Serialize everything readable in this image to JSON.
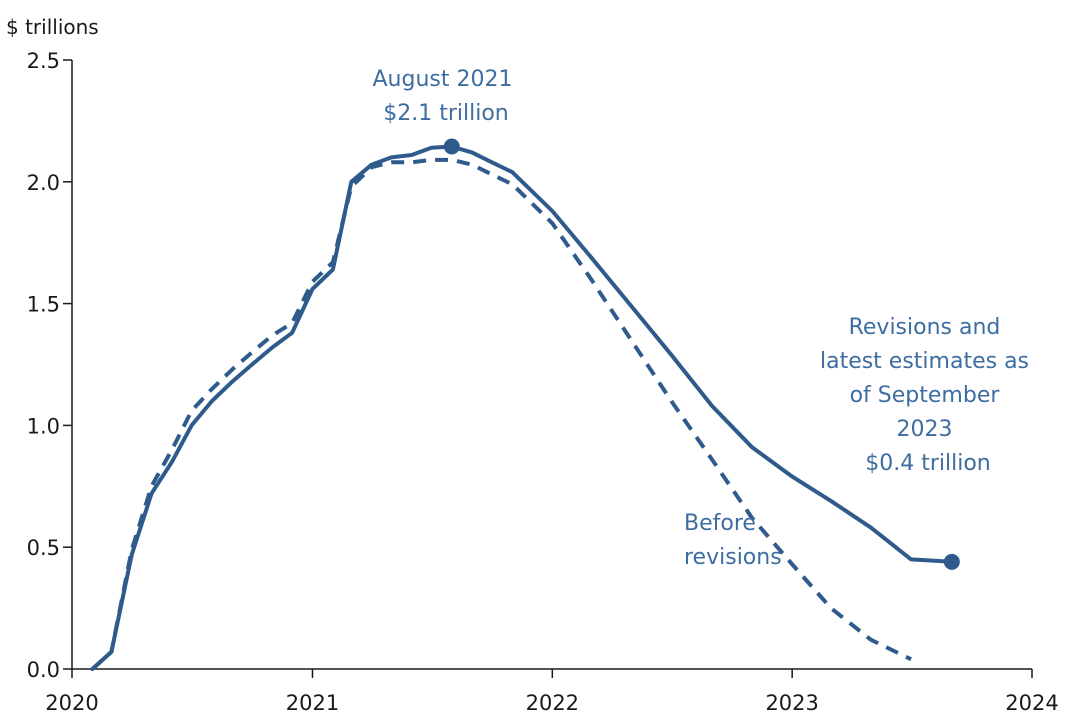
{
  "chart_data": {
    "type": "line",
    "title": "",
    "ylabel": "$ trillions",
    "xlabel": "",
    "xlim": [
      "2020-01-01",
      "2024-01-01"
    ],
    "ylim": [
      0,
      2.5
    ],
    "x_ticks": [
      "2020",
      "2021",
      "2022",
      "2023",
      "2024"
    ],
    "y_ticks": [
      "0.0",
      "0.5",
      "1.0",
      "1.5",
      "2.0",
      "2.5"
    ],
    "grid": false,
    "colors": {
      "line": "#2f5a8c",
      "axis": "#1a1a1a",
      "text": "#1a1a1a",
      "annotation": "#3d6da1"
    },
    "series": [
      {
        "style": "solid",
        "points": [
          [
            "2020-02-01",
            0.0
          ],
          [
            "2020-03-01",
            0.07
          ],
          [
            "2020-04-01",
            0.47
          ],
          [
            "2020-05-01",
            0.72
          ],
          [
            "2020-06-01",
            0.85
          ],
          [
            "2020-07-01",
            1.0
          ],
          [
            "2020-08-01",
            1.1
          ],
          [
            "2020-09-01",
            1.18
          ],
          [
            "2020-10-01",
            1.25
          ],
          [
            "2020-11-01",
            1.32
          ],
          [
            "2020-12-01",
            1.38
          ],
          [
            "2021-01-01",
            1.56
          ],
          [
            "2021-02-01",
            1.64
          ],
          [
            "2021-03-01",
            2.0
          ],
          [
            "2021-04-01",
            2.07
          ],
          [
            "2021-05-01",
            2.1
          ],
          [
            "2021-06-01",
            2.11
          ],
          [
            "2021-07-01",
            2.14
          ],
          [
            "2021-08-01",
            2.145
          ],
          [
            "2021-09-01",
            2.12
          ],
          [
            "2021-10-01",
            2.08
          ],
          [
            "2021-11-01",
            2.04
          ],
          [
            "2022-01-01",
            1.88
          ],
          [
            "2022-03-01",
            1.69
          ],
          [
            "2022-05-01",
            1.49
          ],
          [
            "2022-07-01",
            1.29
          ],
          [
            "2022-09-01",
            1.08
          ],
          [
            "2022-11-01",
            0.91
          ],
          [
            "2023-01-01",
            0.79
          ],
          [
            "2023-03-01",
            0.69
          ],
          [
            "2023-05-01",
            0.58
          ],
          [
            "2023-07-01",
            0.45
          ],
          [
            "2023-09-01",
            0.44
          ]
        ]
      },
      {
        "style": "dashed",
        "points": [
          [
            "2020-02-01",
            0.0
          ],
          [
            "2020-03-01",
            0.07
          ],
          [
            "2020-04-01",
            0.49
          ],
          [
            "2020-05-01",
            0.75
          ],
          [
            "2020-06-01",
            0.9
          ],
          [
            "2020-07-01",
            1.06
          ],
          [
            "2020-08-01",
            1.15
          ],
          [
            "2020-09-01",
            1.23
          ],
          [
            "2020-10-01",
            1.3
          ],
          [
            "2020-11-01",
            1.37
          ],
          [
            "2020-12-01",
            1.42
          ],
          [
            "2021-01-01",
            1.59
          ],
          [
            "2021-02-01",
            1.67
          ],
          [
            "2021-03-01",
            1.98
          ],
          [
            "2021-04-01",
            2.06
          ],
          [
            "2021-05-01",
            2.08
          ],
          [
            "2021-06-01",
            2.08
          ],
          [
            "2021-07-01",
            2.09
          ],
          [
            "2021-08-01",
            2.09
          ],
          [
            "2021-09-01",
            2.07
          ],
          [
            "2021-10-01",
            2.03
          ],
          [
            "2021-11-01",
            1.99
          ],
          [
            "2022-01-01",
            1.83
          ],
          [
            "2022-03-01",
            1.6
          ],
          [
            "2022-05-01",
            1.35
          ],
          [
            "2022-07-01",
            1.1
          ],
          [
            "2022-09-01",
            0.86
          ],
          [
            "2022-11-01",
            0.62
          ],
          [
            "2023-01-01",
            0.43
          ],
          [
            "2023-03-01",
            0.25
          ],
          [
            "2023-05-01",
            0.12
          ],
          [
            "2023-07-01",
            0.04
          ]
        ]
      }
    ],
    "highlight_points": [
      {
        "x": "2021-08-01",
        "y": 2.145
      },
      {
        "x": "2023-09-01",
        "y": 0.44
      }
    ],
    "annotations": {
      "peak": [
        "August 2021",
        "$2.1 trillion"
      ],
      "latest": [
        "Revisions and",
        "latest estimates as",
        "of September",
        "2023",
        "$0.4 trillion"
      ],
      "before": [
        "Before",
        "revisions"
      ]
    }
  }
}
